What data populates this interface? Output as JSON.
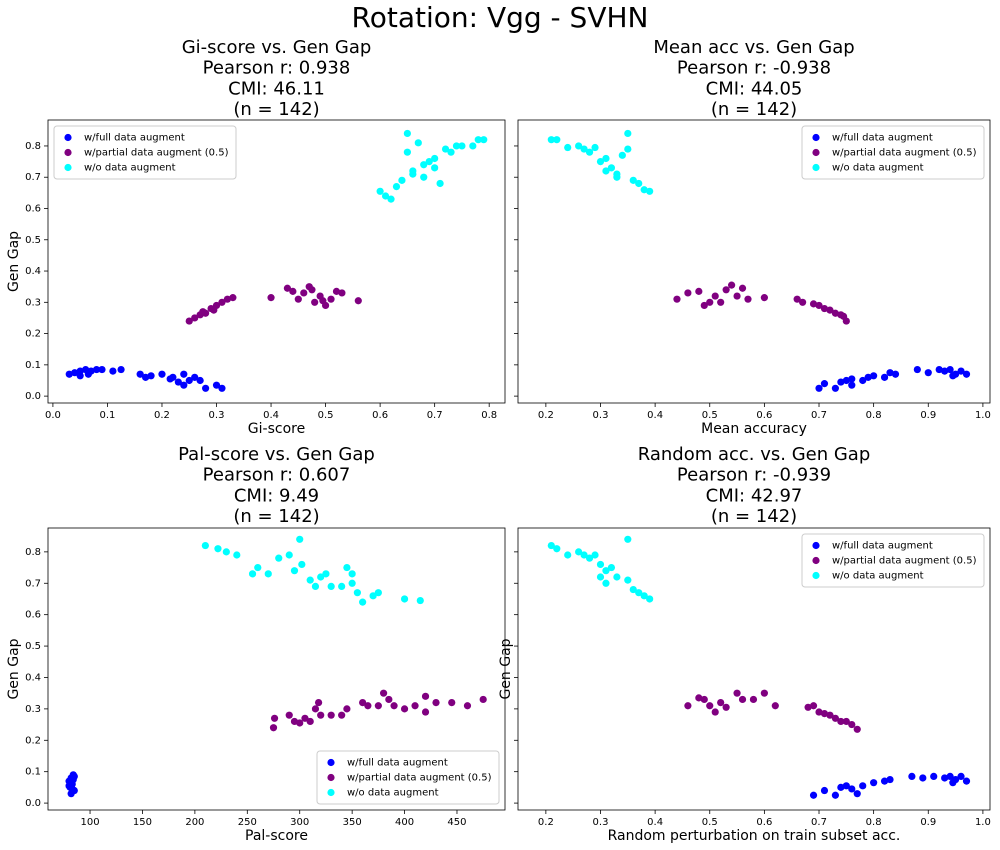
{
  "title": "Rotation: Vgg - SVHN",
  "chart_data": [
    {
      "type": "scatter",
      "title": "Gi-score vs. Gen Gap",
      "annotations": [
        "Pearson r: 0.938",
        "CMI: 46.11",
        "(n = 142)"
      ],
      "xlabel": "Gi-score",
      "ylabel": "Gen Gap",
      "legend_loc": "upper left",
      "show_ytick_labels": true,
      "xlim": [
        -0.009,
        0.829
      ],
      "ylim": [
        -0.022,
        0.883
      ],
      "xticks": [
        {
          "value": 0,
          "label": "0.0"
        },
        0.1,
        0.2,
        0.3,
        0.4,
        0.5,
        0.6,
        0.7,
        0.8
      ],
      "yticks": [
        {
          "value": 0,
          "label": "0.0"
        },
        0.1,
        0.2,
        0.3,
        0.4,
        0.5,
        0.6,
        0.7,
        0.8
      ],
      "series": [
        {
          "name": "w/full data augment",
          "color": "#0000ff",
          "x": [
            0.03,
            0.04,
            0.05,
            0.06,
            0.07,
            0.08,
            0.09,
            0.11,
            0.125,
            0.05,
            0.065,
            0.16,
            0.17,
            0.18,
            0.2,
            0.22,
            0.23,
            0.24,
            0.25,
            0.26,
            0.27,
            0.28,
            0.3,
            0.31,
            0.215,
            0.24
          ],
          "y": [
            0.07,
            0.075,
            0.08,
            0.085,
            0.08,
            0.085,
            0.085,
            0.08,
            0.085,
            0.065,
            0.07,
            0.07,
            0.06,
            0.065,
            0.07,
            0.06,
            0.045,
            0.035,
            0.05,
            0.06,
            0.05,
            0.025,
            0.035,
            0.025,
            0.055,
            0.07
          ]
        },
        {
          "name": "w/partial data augment (0.5)",
          "color": "#800080",
          "x": [
            0.25,
            0.26,
            0.27,
            0.28,
            0.29,
            0.3,
            0.31,
            0.32,
            0.33,
            0.275,
            0.295,
            0.4,
            0.43,
            0.44,
            0.45,
            0.46,
            0.47,
            0.48,
            0.49,
            0.5,
            0.51,
            0.52,
            0.53,
            0.56,
            0.475,
            0.495
          ],
          "y": [
            0.24,
            0.25,
            0.26,
            0.265,
            0.28,
            0.29,
            0.3,
            0.31,
            0.315,
            0.27,
            0.275,
            0.315,
            0.345,
            0.335,
            0.31,
            0.33,
            0.35,
            0.3,
            0.32,
            0.29,
            0.31,
            0.335,
            0.33,
            0.305,
            0.34,
            0.305
          ]
        },
        {
          "name": "w/o data augment",
          "color": "#00ffff",
          "x": [
            0.6,
            0.61,
            0.62,
            0.63,
            0.64,
            0.65,
            0.65,
            0.66,
            0.67,
            0.68,
            0.69,
            0.7,
            0.71,
            0.72,
            0.73,
            0.74,
            0.75,
            0.77,
            0.78,
            0.79,
            0.68,
            0.7,
            0.66
          ],
          "y": [
            0.655,
            0.64,
            0.63,
            0.67,
            0.69,
            0.84,
            0.78,
            0.72,
            0.81,
            0.7,
            0.75,
            0.73,
            0.68,
            0.79,
            0.78,
            0.8,
            0.8,
            0.8,
            0.82,
            0.82,
            0.74,
            0.76,
            0.71
          ]
        }
      ]
    },
    {
      "type": "scatter",
      "title": "Mean acc vs. Gen Gap",
      "annotations": [
        "Pearson r: -0.938",
        "CMI: 44.05",
        "(n = 142)"
      ],
      "xlabel": "Mean accuracy",
      "legend_loc": "upper right",
      "show_ytick_labels": false,
      "xlim": [
        0.149,
        1.013
      ],
      "ylim": [
        -0.022,
        0.883
      ],
      "xticks": [
        0.2,
        0.3,
        0.4,
        0.5,
        0.6,
        0.7,
        0.8,
        0.9,
        {
          "value": 1,
          "label": "1.0"
        }
      ],
      "yticks": [
        0,
        0.1,
        0.2,
        0.3,
        0.4,
        0.5,
        0.6,
        0.7,
        0.8
      ],
      "series": [
        {
          "name": "w/full data augment",
          "color": "#0000ff",
          "x": [
            0.7,
            0.71,
            0.73,
            0.74,
            0.75,
            0.76,
            0.78,
            0.79,
            0.8,
            0.82,
            0.83,
            0.84,
            0.88,
            0.9,
            0.92,
            0.93,
            0.94,
            0.95,
            0.96,
            0.97,
            0.945,
            0.76
          ],
          "y": [
            0.025,
            0.04,
            0.025,
            0.045,
            0.05,
            0.055,
            0.05,
            0.06,
            0.065,
            0.06,
            0.075,
            0.07,
            0.085,
            0.075,
            0.085,
            0.08,
            0.085,
            0.07,
            0.08,
            0.07,
            0.065,
            0.035
          ]
        },
        {
          "name": "w/partial data augment (0.5)",
          "color": "#800080",
          "x": [
            0.44,
            0.46,
            0.48,
            0.49,
            0.5,
            0.51,
            0.52,
            0.53,
            0.54,
            0.55,
            0.56,
            0.57,
            0.6,
            0.66,
            0.67,
            0.69,
            0.7,
            0.71,
            0.72,
            0.73,
            0.74,
            0.75,
            0.745
          ],
          "y": [
            0.31,
            0.33,
            0.335,
            0.29,
            0.3,
            0.32,
            0.3,
            0.34,
            0.355,
            0.32,
            0.345,
            0.31,
            0.315,
            0.31,
            0.3,
            0.295,
            0.29,
            0.28,
            0.275,
            0.265,
            0.26,
            0.24,
            0.255
          ]
        },
        {
          "name": "w/o data augment",
          "color": "#00ffff",
          "x": [
            0.21,
            0.22,
            0.24,
            0.26,
            0.27,
            0.28,
            0.29,
            0.3,
            0.31,
            0.32,
            0.33,
            0.34,
            0.35,
            0.35,
            0.36,
            0.37,
            0.38,
            0.39,
            0.31,
            0.33
          ],
          "y": [
            0.82,
            0.82,
            0.795,
            0.8,
            0.79,
            0.78,
            0.795,
            0.75,
            0.72,
            0.73,
            0.71,
            0.77,
            0.84,
            0.79,
            0.69,
            0.68,
            0.66,
            0.655,
            0.76,
            0.7
          ]
        }
      ]
    },
    {
      "type": "scatter",
      "title": "Pal-score vs. Gen Gap",
      "annotations": [
        "Pearson r: 0.607",
        "CMI: 9.49",
        "(n = 142)"
      ],
      "xlabel": "Pal-score",
      "ylabel": "Gen Gap",
      "legend_loc": "lower right",
      "show_ytick_labels": true,
      "xlim": [
        59.9,
        495.8
      ],
      "ylim": [
        -0.022,
        0.876
      ],
      "xticks": [
        100,
        150,
        200,
        250,
        300,
        350,
        400,
        450
      ],
      "yticks": [
        {
          "value": 0,
          "label": "0.0"
        },
        0.1,
        0.2,
        0.3,
        0.4,
        0.5,
        0.6,
        0.7,
        0.8
      ],
      "series": [
        {
          "name": "w/full data augment",
          "color": "#0000ff",
          "x": [
            80,
            81,
            82,
            83,
            84,
            85,
            82,
            84,
            81,
            83,
            85,
            80
          ],
          "y": [
            0.07,
            0.05,
            0.08,
            0.06,
            0.09,
            0.04,
            0.03,
            0.075,
            0.06,
            0.045,
            0.085,
            0.055
          ]
        },
        {
          "name": "w/partial data augment (0.5)",
          "color": "#800080",
          "x": [
            275,
            276,
            290,
            295,
            300,
            305,
            310,
            315,
            318,
            320,
            330,
            340,
            345,
            360,
            365,
            375,
            380,
            385,
            390,
            400,
            410,
            420,
            430,
            445,
            460,
            475,
            420
          ],
          "y": [
            0.24,
            0.27,
            0.28,
            0.26,
            0.255,
            0.27,
            0.26,
            0.3,
            0.32,
            0.28,
            0.28,
            0.28,
            0.3,
            0.32,
            0.31,
            0.31,
            0.35,
            0.33,
            0.31,
            0.3,
            0.31,
            0.34,
            0.32,
            0.32,
            0.31,
            0.33,
            0.29
          ]
        },
        {
          "name": "w/o data augment",
          "color": "#00ffff",
          "x": [
            210,
            222,
            230,
            240,
            255,
            260,
            270,
            280,
            290,
            295,
            300,
            302,
            310,
            315,
            320,
            325,
            330,
            340,
            345,
            350,
            355,
            360,
            370,
            375,
            400,
            415,
            350
          ],
          "y": [
            0.82,
            0.81,
            0.8,
            0.79,
            0.73,
            0.75,
            0.73,
            0.78,
            0.79,
            0.74,
            0.84,
            0.76,
            0.71,
            0.69,
            0.72,
            0.73,
            0.69,
            0.69,
            0.75,
            0.7,
            0.67,
            0.64,
            0.66,
            0.67,
            0.65,
            0.645,
            0.73
          ]
        }
      ]
    },
    {
      "type": "scatter",
      "title": "Random acc. vs. Gen Gap",
      "annotations": [
        "Pearson r: -0.939",
        "CMI: 42.97",
        "(n = 142)"
      ],
      "xlabel": "Random perturbation on train subset acc.",
      "ylabel": "Gen Gap",
      "legend_loc": "upper right",
      "show_ytick_labels": false,
      "xlim": [
        0.149,
        1.013
      ],
      "ylim": [
        -0.022,
        0.876
      ],
      "xticks": [
        0.2,
        0.3,
        0.4,
        0.5,
        0.6,
        0.7,
        0.8,
        0.9,
        {
          "value": 1,
          "label": "1.0"
        }
      ],
      "yticks": [
        0,
        0.1,
        0.2,
        0.3,
        0.4,
        0.5,
        0.6,
        0.7,
        0.8
      ],
      "series": [
        {
          "name": "w/full data augment",
          "color": "#0000ff",
          "x": [
            0.69,
            0.71,
            0.73,
            0.74,
            0.75,
            0.76,
            0.78,
            0.8,
            0.82,
            0.83,
            0.87,
            0.89,
            0.91,
            0.93,
            0.94,
            0.95,
            0.96,
            0.97,
            0.945,
            0.77
          ],
          "y": [
            0.025,
            0.04,
            0.025,
            0.05,
            0.055,
            0.045,
            0.055,
            0.065,
            0.07,
            0.075,
            0.085,
            0.08,
            0.085,
            0.08,
            0.085,
            0.075,
            0.085,
            0.07,
            0.065,
            0.03
          ]
        },
        {
          "name": "w/partial data augment (0.5)",
          "color": "#800080",
          "x": [
            0.46,
            0.48,
            0.49,
            0.5,
            0.51,
            0.52,
            0.53,
            0.55,
            0.56,
            0.58,
            0.6,
            0.62,
            0.68,
            0.7,
            0.71,
            0.72,
            0.73,
            0.74,
            0.75,
            0.76,
            0.77,
            0.69
          ],
          "y": [
            0.31,
            0.335,
            0.33,
            0.31,
            0.29,
            0.32,
            0.305,
            0.35,
            0.33,
            0.33,
            0.35,
            0.31,
            0.305,
            0.29,
            0.285,
            0.28,
            0.27,
            0.26,
            0.26,
            0.25,
            0.235,
            0.31
          ]
        },
        {
          "name": "w/o data augment",
          "color": "#00ffff",
          "x": [
            0.21,
            0.22,
            0.24,
            0.26,
            0.27,
            0.28,
            0.29,
            0.3,
            0.31,
            0.32,
            0.33,
            0.35,
            0.35,
            0.36,
            0.37,
            0.38,
            0.39,
            0.3,
            0.31
          ],
          "y": [
            0.82,
            0.81,
            0.79,
            0.8,
            0.79,
            0.78,
            0.79,
            0.72,
            0.74,
            0.75,
            0.72,
            0.84,
            0.71,
            0.68,
            0.67,
            0.66,
            0.65,
            0.76,
            0.7
          ]
        }
      ]
    }
  ]
}
